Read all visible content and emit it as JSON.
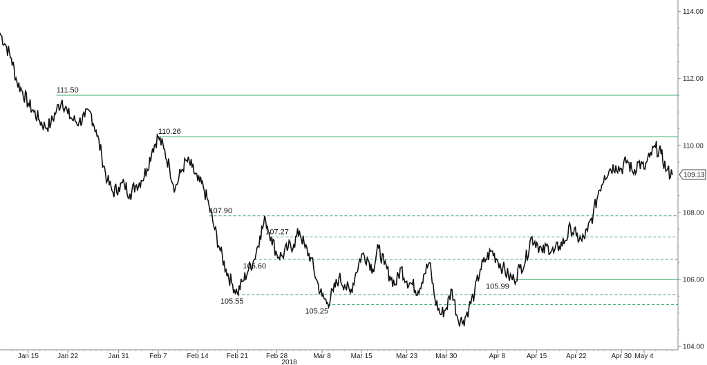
{
  "chart_data": {
    "type": "line",
    "title": "",
    "xlabel": "",
    "ylabel": "",
    "year_label": "2018",
    "ylim": [
      103.9,
      114.3
    ],
    "y_ticks": [
      "114.00",
      "112.00",
      "110.00",
      "108.00",
      "106.00",
      "104.00"
    ],
    "x_ticks": [
      {
        "label": "Jan 15",
        "t": 4
      },
      {
        "label": "Jan 22",
        "t": 11
      },
      {
        "label": "Jan 31",
        "t": 20
      },
      {
        "label": "Feb 7",
        "t": 27
      },
      {
        "label": "Feb 14",
        "t": 34
      },
      {
        "label": "Feb 21",
        "t": 41
      },
      {
        "label": "Feb 28",
        "t": 48
      },
      {
        "label": "Mar 8",
        "t": 56
      },
      {
        "label": "Mar 15",
        "t": 63
      },
      {
        "label": "Mar 23",
        "t": 71
      },
      {
        "label": "Mar 30",
        "t": 78
      },
      {
        "label": "Apr 8",
        "t": 87
      },
      {
        "label": "Apr 15",
        "t": 94
      },
      {
        "label": "Apr 22",
        "t": 101
      },
      {
        "label": "Apr 30",
        "t": 109
      },
      {
        "label": "May 4",
        "t": 113
      }
    ],
    "x_range_days": [
      -1,
      119
    ],
    "grid": false,
    "series": [
      {
        "color": "#111111",
        "points": [
          [
            -1,
            113.35
          ],
          [
            0,
            113.0
          ],
          [
            1,
            112.6
          ],
          [
            2,
            111.9
          ],
          [
            3,
            111.6
          ],
          [
            4,
            111.25
          ],
          [
            5,
            111.0
          ],
          [
            6,
            110.75
          ],
          [
            7,
            110.55
          ],
          [
            8,
            110.65
          ],
          [
            9,
            111.05
          ],
          [
            10,
            111.35
          ],
          [
            11,
            110.95
          ],
          [
            12,
            110.75
          ],
          [
            13,
            110.7
          ],
          [
            14,
            110.85
          ],
          [
            15,
            111.0
          ],
          [
            16,
            110.45
          ],
          [
            17,
            109.7
          ],
          [
            18,
            108.95
          ],
          [
            19,
            108.6
          ],
          [
            20,
            108.75
          ],
          [
            21,
            108.85
          ],
          [
            22,
            108.55
          ],
          [
            23,
            108.8
          ],
          [
            24,
            108.95
          ],
          [
            25,
            109.3
          ],
          [
            26,
            109.9
          ],
          [
            27,
            110.26
          ],
          [
            28,
            109.9
          ],
          [
            29,
            109.35
          ],
          [
            30,
            108.7
          ],
          [
            31,
            109.2
          ],
          [
            32,
            109.55
          ],
          [
            33,
            109.35
          ],
          [
            34,
            108.95
          ],
          [
            35,
            108.75
          ],
          [
            36,
            108.2
          ],
          [
            37,
            107.5
          ],
          [
            38,
            106.85
          ],
          [
            39,
            106.3
          ],
          [
            40,
            105.9
          ],
          [
            41,
            105.6
          ],
          [
            42,
            105.95
          ],
          [
            43,
            106.3
          ],
          [
            44,
            106.6
          ],
          [
            45,
            107.3
          ],
          [
            46,
            107.8
          ],
          [
            47,
            107.27
          ],
          [
            48,
            106.75
          ],
          [
            49,
            106.7
          ],
          [
            50,
            106.95
          ],
          [
            51,
            107.05
          ],
          [
            52,
            107.45
          ],
          [
            53,
            106.95
          ],
          [
            54,
            106.65
          ],
          [
            55,
            106.0
          ],
          [
            56,
            105.5
          ],
          [
            57,
            105.3
          ],
          [
            58,
            105.65
          ],
          [
            59,
            106.05
          ],
          [
            60,
            105.85
          ],
          [
            61,
            105.6
          ],
          [
            62,
            106.2
          ],
          [
            63,
            106.75
          ],
          [
            64,
            106.65
          ],
          [
            65,
            106.3
          ],
          [
            66,
            106.95
          ],
          [
            67,
            106.45
          ],
          [
            68,
            106.1
          ],
          [
            69,
            105.85
          ],
          [
            70,
            106.35
          ],
          [
            71,
            105.95
          ],
          [
            72,
            105.85
          ],
          [
            73,
            105.65
          ],
          [
            74,
            106.15
          ],
          [
            75,
            106.5
          ],
          [
            76,
            105.4
          ],
          [
            77,
            104.95
          ],
          [
            78,
            105.15
          ],
          [
            79,
            105.7
          ],
          [
            80,
            104.85
          ],
          [
            81,
            104.75
          ],
          [
            82,
            105.15
          ],
          [
            83,
            105.6
          ],
          [
            84,
            106.3
          ],
          [
            85,
            106.6
          ],
          [
            86,
            106.85
          ],
          [
            87,
            106.6
          ],
          [
            88,
            106.35
          ],
          [
            89,
            106.1
          ],
          [
            90,
            105.99
          ],
          [
            91,
            106.35
          ],
          [
            92,
            106.55
          ],
          [
            93,
            107.25
          ],
          [
            94,
            107.1
          ],
          [
            95,
            106.8
          ],
          [
            96,
            107.0
          ],
          [
            97,
            106.8
          ],
          [
            98,
            107.0
          ],
          [
            99,
            107.15
          ],
          [
            100,
            107.55
          ],
          [
            101,
            107.3
          ],
          [
            102,
            107.15
          ],
          [
            103,
            107.45
          ],
          [
            104,
            107.95
          ],
          [
            105,
            108.65
          ],
          [
            106,
            109.1
          ],
          [
            107,
            109.3
          ],
          [
            108,
            109.4
          ],
          [
            109,
            109.3
          ],
          [
            110,
            109.55
          ],
          [
            111,
            109.2
          ],
          [
            112,
            109.5
          ],
          [
            113,
            109.3
          ],
          [
            114,
            109.65
          ],
          [
            115,
            109.95
          ],
          [
            116,
            109.75
          ],
          [
            117,
            109.25
          ],
          [
            118,
            109.13
          ]
        ]
      }
    ],
    "levels": [
      {
        "value": 111.5,
        "label": "111.50",
        "style": "solid",
        "start_t": 9,
        "label_t": 9,
        "label_pos": "above"
      },
      {
        "value": 110.26,
        "label": "110.26",
        "style": "solid",
        "start_t": 27,
        "label_t": 27,
        "label_pos": "above"
      },
      {
        "value": 107.9,
        "label": "107.90",
        "style": "dashed",
        "start_t": 36,
        "label_t": 36,
        "label_pos": "above"
      },
      {
        "value": 107.27,
        "label": "107.27",
        "style": "dashed",
        "start_t": 47,
        "label_t": 46,
        "label_pos": "above"
      },
      {
        "value": 106.6,
        "label": "106.60",
        "style": "dashed",
        "start_t": 44,
        "label_t": 42,
        "label_pos": "below"
      },
      {
        "value": 105.99,
        "label": "105.99",
        "style": "solid",
        "start_t": 90,
        "label_t": 85,
        "label_pos": "below"
      },
      {
        "value": 105.55,
        "label": "105.55",
        "style": "dashed",
        "start_t": 41,
        "label_t": 38,
        "label_pos": "below"
      },
      {
        "value": 105.25,
        "label": "105.25",
        "style": "dashed",
        "start_t": 57,
        "label_t": 53,
        "label_pos": "below"
      }
    ],
    "last_value": {
      "value": 109.13,
      "label": "109.13"
    },
    "colors": {
      "line": "#111111",
      "level": "#3daa6b",
      "axis": "#888888",
      "text": "#222222"
    }
  }
}
